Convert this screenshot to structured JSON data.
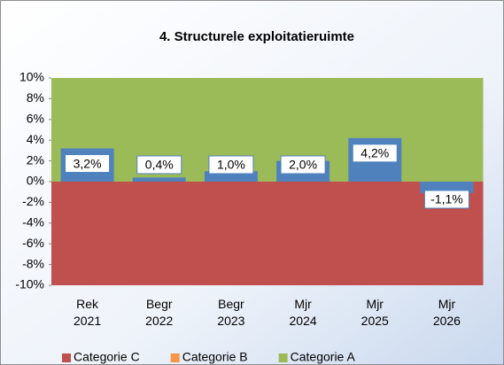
{
  "chart_data": {
    "type": "bar",
    "title": "4. Structurele exploitatieruimte",
    "categories": [
      [
        "Rek",
        "2021"
      ],
      [
        "Begr",
        "2022"
      ],
      [
        "Begr",
        "2023"
      ],
      [
        "Mjr",
        "2024"
      ],
      [
        "Mjr",
        "2025"
      ],
      [
        "Mjr",
        "2026"
      ]
    ],
    "values": [
      3.2,
      0.4,
      1.0,
      2.0,
      4.2,
      -1.1
    ],
    "value_labels": [
      "3,2%",
      "0,4%",
      "1,0%",
      "2,0%",
      "4,2%",
      "-1,1%"
    ],
    "color": "#4f81bd",
    "series": [
      {
        "name": "Categorie C",
        "color": "#c0504d",
        "values": [
          -10,
          -10,
          -10,
          -10,
          -10,
          -10
        ]
      },
      {
        "name": "Categorie B",
        "color": "#f79646",
        "values": [
          0,
          0,
          0,
          0,
          0,
          0
        ]
      },
      {
        "name": "Categorie A",
        "color": "#9bbb59",
        "values": [
          10,
          10,
          10,
          10,
          10,
          10
        ]
      }
    ],
    "ylim": [
      -10,
      10
    ],
    "yticks": [
      {
        "value": 10,
        "label": "10%"
      },
      {
        "value": 8,
        "label": "8%"
      },
      {
        "value": 6,
        "label": "6%"
      },
      {
        "value": 4,
        "label": "4%"
      },
      {
        "value": 2,
        "label": "2%"
      },
      {
        "value": 0,
        "label": "0%"
      },
      {
        "value": -2,
        "label": "-2%"
      },
      {
        "value": -4,
        "label": "-4%"
      },
      {
        "value": -6,
        "label": "-6%"
      },
      {
        "value": -8,
        "label": "-8%"
      },
      {
        "value": -10,
        "label": "-10%"
      }
    ],
    "legend": "bottom"
  }
}
